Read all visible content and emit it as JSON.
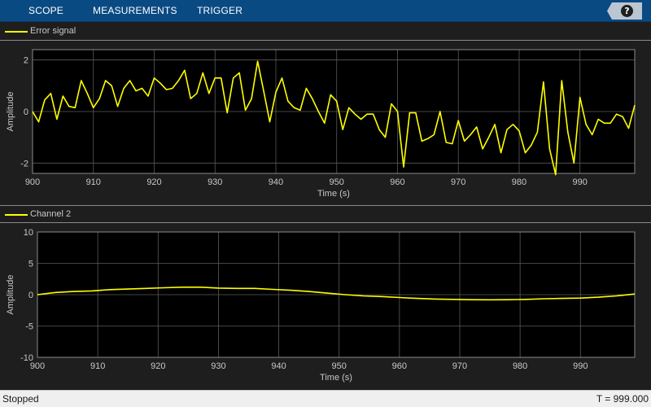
{
  "toolstrip": {
    "tabs": [
      "SCOPE",
      "MEASUREMENTS",
      "TRIGGER"
    ],
    "help_label": "?"
  },
  "colors": {
    "trace": "#ffff00",
    "plot_background": "#000000",
    "grid": "#5a5a5a",
    "axis_text": "#c8c8c8"
  },
  "chart_data": [
    {
      "type": "line",
      "legend": "Error signal",
      "xlabel": "Time (s)",
      "ylabel": "Amplitude",
      "xlim": [
        900,
        999
      ],
      "ylim": [
        -2.4,
        2.4
      ],
      "xticks": [
        900,
        910,
        920,
        930,
        940,
        950,
        960,
        970,
        980,
        990
      ],
      "yticks": [
        2,
        0,
        -2
      ],
      "ytick_labels": [
        "2",
        "0",
        "-2"
      ],
      "grid": true,
      "series": [
        {
          "name": "Error signal",
          "x": [
            900,
            901,
            902,
            903,
            904,
            905,
            906,
            907,
            908,
            909,
            910,
            911,
            912,
            913,
            914,
            915,
            916,
            917,
            918,
            919,
            920,
            921,
            922,
            923,
            924,
            925,
            926,
            927,
            928,
            929,
            930,
            931,
            932,
            933,
            934,
            935,
            936,
            937,
            938,
            939,
            940,
            941,
            942,
            943,
            944,
            945,
            946,
            947,
            948,
            949,
            950,
            951,
            952,
            953,
            954,
            955,
            956,
            957,
            958,
            959,
            960,
            961,
            962,
            963,
            964,
            965,
            966,
            967,
            968,
            969,
            970,
            971,
            972,
            973,
            974,
            975,
            976,
            977,
            978,
            979,
            980,
            981,
            982,
            983,
            984,
            985,
            986,
            987,
            988,
            989,
            990,
            991,
            992,
            993,
            994,
            995,
            996,
            997,
            998,
            999
          ],
          "y": [
            0.0,
            -0.4,
            0.45,
            0.7,
            -0.3,
            0.6,
            0.2,
            0.15,
            1.2,
            0.7,
            0.15,
            0.5,
            1.2,
            1.0,
            0.2,
            0.9,
            1.2,
            0.8,
            0.9,
            0.6,
            1.3,
            1.1,
            0.85,
            0.9,
            1.2,
            1.6,
            0.5,
            0.7,
            1.5,
            0.7,
            1.3,
            1.3,
            -0.05,
            1.3,
            1.5,
            0.05,
            0.5,
            1.95,
            0.8,
            -0.4,
            0.75,
            1.3,
            0.4,
            0.15,
            0.05,
            0.9,
            0.5,
            0.0,
            -0.45,
            0.65,
            0.4,
            -0.7,
            0.15,
            -0.1,
            -0.3,
            -0.1,
            -0.1,
            -0.7,
            -1.0,
            0.3,
            0.0,
            -2.15,
            -0.05,
            -0.05,
            -1.15,
            -1.05,
            -0.9,
            0.0,
            -1.2,
            -1.25,
            -0.35,
            -1.15,
            -0.9,
            -0.6,
            -1.45,
            -1.0,
            -0.5,
            -1.6,
            -0.7,
            -0.5,
            -0.75,
            -1.6,
            -1.3,
            -0.8,
            1.15,
            -1.45,
            -2.45,
            1.2,
            -0.8,
            -2.0,
            0.55,
            -0.5,
            -0.9,
            -0.3,
            -0.45,
            -0.45,
            -0.1,
            -0.2,
            -0.65,
            0.25
          ]
        }
      ]
    },
    {
      "type": "line",
      "legend": "Channel 2",
      "xlabel": "Time (s)",
      "ylabel": "Amplitude",
      "xlim": [
        900,
        999
      ],
      "ylim": [
        -10,
        10
      ],
      "xticks": [
        900,
        910,
        920,
        930,
        940,
        950,
        960,
        970,
        980,
        990
      ],
      "yticks": [
        10,
        5,
        0,
        -5,
        -10
      ],
      "ytick_labels": [
        "10",
        "5",
        "0",
        "-5",
        "-10"
      ],
      "grid": true,
      "series": [
        {
          "name": "Channel 2",
          "x": [
            900,
            903,
            906,
            909,
            912,
            915,
            918,
            921,
            924,
            927,
            930,
            933,
            936,
            939,
            942,
            945,
            948,
            951,
            954,
            957,
            960,
            963,
            966,
            969,
            972,
            975,
            978,
            981,
            984,
            987,
            990,
            993,
            996,
            999
          ],
          "y": [
            0.0,
            0.35,
            0.5,
            0.6,
            0.8,
            0.9,
            1.0,
            1.1,
            1.2,
            1.2,
            1.05,
            1.0,
            1.0,
            0.85,
            0.7,
            0.5,
            0.25,
            0.0,
            -0.2,
            -0.3,
            -0.45,
            -0.6,
            -0.7,
            -0.75,
            -0.8,
            -0.82,
            -0.8,
            -0.75,
            -0.65,
            -0.6,
            -0.55,
            -0.4,
            -0.2,
            0.1
          ]
        }
      ]
    }
  ],
  "status": {
    "left": "Stopped",
    "right": "T = 999.000"
  }
}
